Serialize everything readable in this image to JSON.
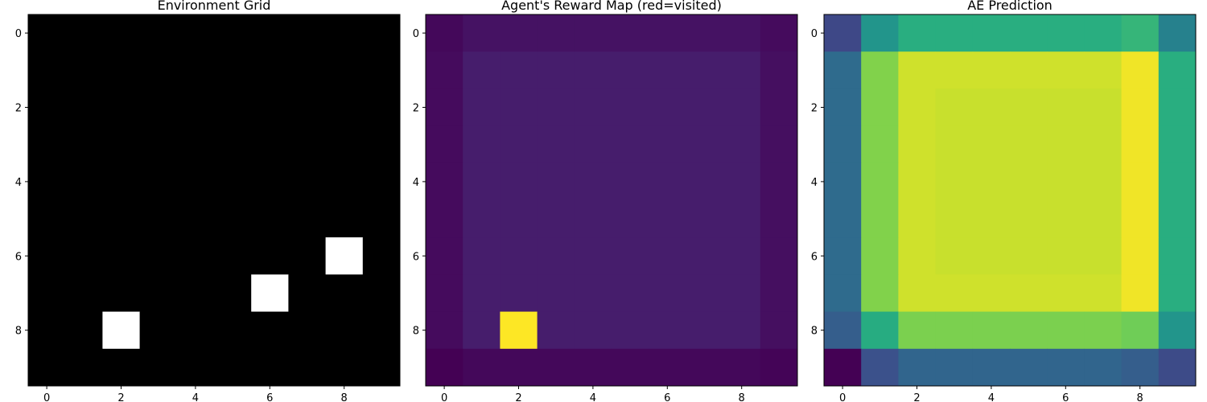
{
  "chart_data": [
    {
      "type": "heatmap",
      "title": "Environment Grid",
      "colormap": "gray",
      "vmin": 0,
      "vmax": 1,
      "xticks": [
        0,
        2,
        4,
        6,
        8
      ],
      "yticks": [
        0,
        2,
        4,
        6,
        8
      ],
      "values": [
        [
          0,
          0,
          0,
          0,
          0,
          0,
          0,
          0,
          0,
          0
        ],
        [
          0,
          0,
          0,
          0,
          0,
          0,
          0,
          0,
          0,
          0
        ],
        [
          0,
          0,
          0,
          0,
          0,
          0,
          0,
          0,
          0,
          0
        ],
        [
          0,
          0,
          0,
          0,
          0,
          0,
          0,
          0,
          0,
          0
        ],
        [
          0,
          0,
          0,
          0,
          0,
          0,
          0,
          0,
          0,
          0
        ],
        [
          0,
          0,
          0,
          0,
          0,
          0,
          0,
          0,
          0,
          0
        ],
        [
          0,
          0,
          0,
          0,
          0,
          0,
          0,
          0,
          1,
          0
        ],
        [
          0,
          0,
          0,
          0,
          0,
          0,
          1,
          0,
          0,
          0
        ],
        [
          0,
          0,
          1,
          0,
          0,
          0,
          0,
          0,
          0,
          0
        ],
        [
          0,
          0,
          0,
          0,
          0,
          0,
          0,
          0,
          0,
          0
        ]
      ]
    },
    {
      "type": "heatmap",
      "title": "Agent's Reward Map (red=visited)",
      "colormap": "viridis",
      "vmin": 0,
      "vmax": 1,
      "xticks": [
        0,
        2,
        4,
        6,
        8
      ],
      "yticks": [
        0,
        2,
        4,
        6,
        8
      ],
      "values": [
        [
          0.02,
          0.05,
          0.05,
          0.05,
          0.05,
          0.05,
          0.05,
          0.05,
          0.05,
          0.03
        ],
        [
          0.03,
          0.08,
          0.08,
          0.08,
          0.08,
          0.08,
          0.08,
          0.08,
          0.08,
          0.04
        ],
        [
          0.03,
          0.08,
          0.08,
          0.08,
          0.08,
          0.08,
          0.08,
          0.08,
          0.08,
          0.04
        ],
        [
          0.03,
          0.08,
          0.08,
          0.08,
          0.08,
          0.08,
          0.08,
          0.08,
          0.08,
          0.04
        ],
        [
          0.03,
          0.08,
          0.08,
          0.08,
          0.08,
          0.08,
          0.08,
          0.08,
          0.08,
          0.04
        ],
        [
          0.03,
          0.08,
          0.08,
          0.08,
          0.08,
          0.08,
          0.08,
          0.08,
          0.08,
          0.04
        ],
        [
          0.03,
          0.08,
          0.08,
          0.08,
          0.08,
          0.08,
          0.08,
          0.08,
          0.08,
          0.04
        ],
        [
          0.03,
          0.08,
          0.08,
          0.08,
          0.08,
          0.08,
          0.08,
          0.08,
          0.08,
          0.04
        ],
        [
          0.03,
          0.08,
          1.0,
          0.08,
          0.08,
          0.08,
          0.08,
          0.08,
          0.08,
          0.04
        ],
        [
          0.0,
          0.02,
          0.02,
          0.02,
          0.02,
          0.02,
          0.02,
          0.02,
          0.02,
          0.01
        ]
      ]
    },
    {
      "type": "heatmap",
      "title": "AE Prediction",
      "colormap": "viridis",
      "vmin": 0,
      "vmax": 1,
      "xticks": [
        0,
        2,
        4,
        6,
        8
      ],
      "yticks": [
        0,
        2,
        4,
        6,
        8
      ],
      "values": [
        [
          0.22,
          0.52,
          0.63,
          0.63,
          0.63,
          0.63,
          0.63,
          0.63,
          0.66,
          0.44
        ],
        [
          0.35,
          0.81,
          0.93,
          0.93,
          0.93,
          0.93,
          0.93,
          0.93,
          0.98,
          0.63
        ],
        [
          0.35,
          0.81,
          0.93,
          0.92,
          0.92,
          0.92,
          0.92,
          0.92,
          0.98,
          0.63
        ],
        [
          0.35,
          0.81,
          0.93,
          0.92,
          0.92,
          0.92,
          0.92,
          0.92,
          0.98,
          0.63
        ],
        [
          0.35,
          0.81,
          0.93,
          0.92,
          0.92,
          0.92,
          0.92,
          0.92,
          0.98,
          0.63
        ],
        [
          0.35,
          0.81,
          0.93,
          0.92,
          0.92,
          0.92,
          0.92,
          0.92,
          0.98,
          0.63
        ],
        [
          0.35,
          0.81,
          0.93,
          0.92,
          0.92,
          0.92,
          0.92,
          0.92,
          0.98,
          0.63
        ],
        [
          0.35,
          0.81,
          0.93,
          0.93,
          0.93,
          0.93,
          0.93,
          0.93,
          0.98,
          0.63
        ],
        [
          0.3,
          0.62,
          0.8,
          0.8,
          0.8,
          0.8,
          0.8,
          0.8,
          0.78,
          0.52
        ],
        [
          0.0,
          0.25,
          0.33,
          0.33,
          0.33,
          0.33,
          0.33,
          0.33,
          0.3,
          0.23
        ]
      ]
    }
  ]
}
